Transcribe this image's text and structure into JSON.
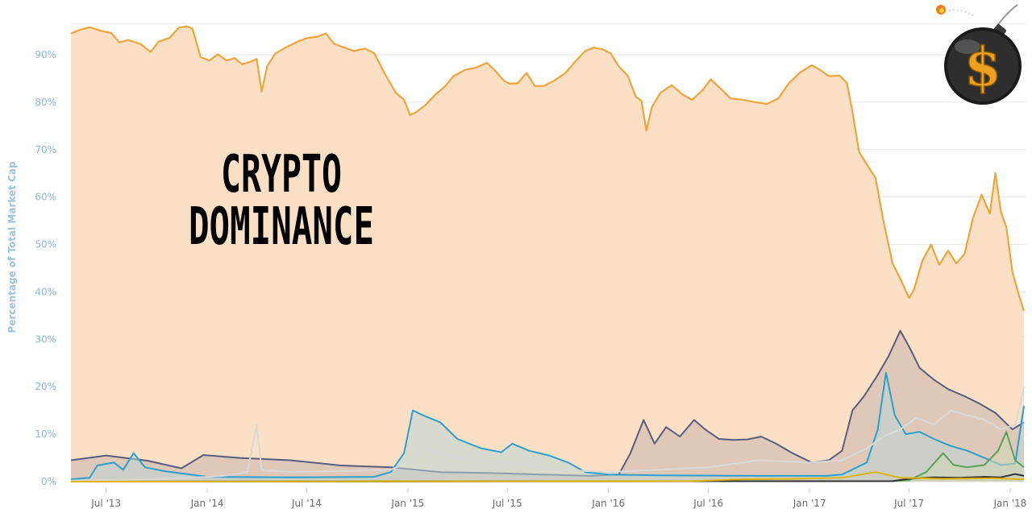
{
  "chart_data": {
    "type": "area",
    "title": "CRYPTO DOMINANCE",
    "ylabel": "Percentage of Total Market Cap",
    "xlabel": "",
    "x_range": [
      "2013-04-28",
      "2018-01-26"
    ],
    "ylim": [
      0,
      100
    ],
    "grid": true,
    "legend": "none",
    "y_ticks": [
      0,
      10,
      20,
      30,
      40,
      50,
      60,
      70,
      80,
      90
    ],
    "y_tick_labels": [
      "0%",
      "10%",
      "20%",
      "30%",
      "40%",
      "50%",
      "60%",
      "70%",
      "80%",
      "90%"
    ],
    "x_ticks": [
      "2013-07-01",
      "2014-01-01",
      "2014-07-01",
      "2015-01-01",
      "2015-07-01",
      "2016-01-01",
      "2016-07-01",
      "2017-01-01",
      "2017-07-01",
      "2018-01-01"
    ],
    "x_tick_labels": [
      "Jul '13",
      "Jan '14",
      "Jul '14",
      "Jan '15",
      "Jul '15",
      "Jan '16",
      "Jul '16",
      "Jan '17",
      "Jul '17",
      "Jan '18"
    ],
    "series": [
      {
        "color": "#f0a43c",
        "fill": "#fbe0c6",
        "points": [
          [
            "2013-04-28",
            94.5
          ],
          [
            "2013-05-15",
            95.3
          ],
          [
            "2013-06-01",
            95.8
          ],
          [
            "2013-06-20",
            95.1
          ],
          [
            "2013-07-10",
            94.6
          ],
          [
            "2013-07-25",
            92.6
          ],
          [
            "2013-08-10",
            93.1
          ],
          [
            "2013-09-01",
            92.3
          ],
          [
            "2013-09-20",
            90.6
          ],
          [
            "2013-10-05",
            92.8
          ],
          [
            "2013-10-25",
            93.6
          ],
          [
            "2013-11-10",
            95.7
          ],
          [
            "2013-11-25",
            96.0
          ],
          [
            "2013-12-05",
            95.5
          ],
          [
            "2013-12-20",
            89.5
          ],
          [
            "2014-01-05",
            88.8
          ],
          [
            "2014-01-20",
            90.1
          ],
          [
            "2014-02-05",
            88.8
          ],
          [
            "2014-02-20",
            89.3
          ],
          [
            "2014-03-05",
            88.0
          ],
          [
            "2014-03-20",
            88.5
          ],
          [
            "2014-04-01",
            89.1
          ],
          [
            "2014-04-10",
            82.2
          ],
          [
            "2014-04-20",
            87.6
          ],
          [
            "2014-05-05",
            90.3
          ],
          [
            "2014-05-25",
            91.6
          ],
          [
            "2014-06-15",
            92.8
          ],
          [
            "2014-07-01",
            93.5
          ],
          [
            "2014-07-20",
            93.8
          ],
          [
            "2014-08-05",
            94.5
          ],
          [
            "2014-08-20",
            92.3
          ],
          [
            "2014-09-05",
            91.6
          ],
          [
            "2014-09-25",
            90.8
          ],
          [
            "2014-10-15",
            91.3
          ],
          [
            "2014-11-01",
            90.3
          ],
          [
            "2014-11-20",
            86.0
          ],
          [
            "2014-12-10",
            82.0
          ],
          [
            "2014-12-25",
            80.5
          ],
          [
            "2015-01-05",
            77.3
          ],
          [
            "2015-01-15",
            77.8
          ],
          [
            "2015-02-01",
            79.3
          ],
          [
            "2015-02-20",
            81.6
          ],
          [
            "2015-03-10",
            83.4
          ],
          [
            "2015-03-25",
            85.5
          ],
          [
            "2015-04-15",
            86.8
          ],
          [
            "2015-05-05",
            87.3
          ],
          [
            "2015-05-25",
            88.3
          ],
          [
            "2015-06-10",
            86.5
          ],
          [
            "2015-06-25",
            84.5
          ],
          [
            "2015-07-05",
            83.9
          ],
          [
            "2015-07-20",
            84.0
          ],
          [
            "2015-08-05",
            86.2
          ],
          [
            "2015-08-20",
            83.4
          ],
          [
            "2015-09-05",
            83.4
          ],
          [
            "2015-09-25",
            84.6
          ],
          [
            "2015-10-15",
            86.2
          ],
          [
            "2015-11-01",
            88.5
          ],
          [
            "2015-11-20",
            90.8
          ],
          [
            "2015-12-05",
            91.5
          ],
          [
            "2015-12-20",
            91.2
          ],
          [
            "2016-01-05",
            90.3
          ],
          [
            "2016-01-20",
            87.5
          ],
          [
            "2016-02-05",
            85.6
          ],
          [
            "2016-02-20",
            81.1
          ],
          [
            "2016-03-01",
            80.3
          ],
          [
            "2016-03-10",
            74.0
          ],
          [
            "2016-03-20",
            79.0
          ],
          [
            "2016-04-05",
            82.0
          ],
          [
            "2016-04-25",
            83.6
          ],
          [
            "2016-05-15",
            81.6
          ],
          [
            "2016-06-01",
            80.5
          ],
          [
            "2016-06-20",
            82.5
          ],
          [
            "2016-07-05",
            84.8
          ],
          [
            "2016-07-20",
            83.2
          ],
          [
            "2016-08-10",
            80.8
          ],
          [
            "2016-09-01",
            80.5
          ],
          [
            "2016-09-25",
            80.0
          ],
          [
            "2016-10-15",
            79.6
          ],
          [
            "2016-11-05",
            80.8
          ],
          [
            "2016-11-25",
            84.1
          ],
          [
            "2016-12-15",
            86.3
          ],
          [
            "2017-01-05",
            87.8
          ],
          [
            "2017-01-20",
            86.8
          ],
          [
            "2017-02-05",
            85.5
          ],
          [
            "2017-02-25",
            85.6
          ],
          [
            "2017-03-10",
            84.0
          ],
          [
            "2017-03-20",
            78.0
          ],
          [
            "2017-04-01",
            69.5
          ],
          [
            "2017-04-15",
            66.9
          ],
          [
            "2017-05-01",
            64.0
          ],
          [
            "2017-05-15",
            55.1
          ],
          [
            "2017-06-01",
            46.0
          ],
          [
            "2017-06-15",
            42.8
          ],
          [
            "2017-07-01",
            38.7
          ],
          [
            "2017-07-10",
            40.5
          ],
          [
            "2017-07-25",
            46.5
          ],
          [
            "2017-08-10",
            50.0
          ],
          [
            "2017-08-25",
            45.7
          ],
          [
            "2017-09-10",
            48.7
          ],
          [
            "2017-09-25",
            46.0
          ],
          [
            "2017-10-10",
            48.0
          ],
          [
            "2017-10-25",
            55.5
          ],
          [
            "2017-11-10",
            60.5
          ],
          [
            "2017-11-25",
            56.5
          ],
          [
            "2017-12-05",
            65.1
          ],
          [
            "2017-12-15",
            56.9
          ],
          [
            "2017-12-25",
            53.6
          ],
          [
            "2018-01-05",
            44.3
          ],
          [
            "2018-01-15",
            40.0
          ],
          [
            "2018-01-26",
            36.0
          ]
        ]
      },
      {
        "color": "#5b5b80",
        "fill": "#c9b4ad",
        "points": [
          [
            "2013-04-28",
            4.5
          ],
          [
            "2013-07-01",
            5.5
          ],
          [
            "2013-09-15",
            4.4
          ],
          [
            "2013-11-15",
            2.8
          ],
          [
            "2013-12-25",
            5.6
          ],
          [
            "2014-03-01",
            5.0
          ],
          [
            "2014-06-01",
            4.5
          ],
          [
            "2014-09-01",
            3.4
          ],
          [
            "2014-12-01",
            3.0
          ],
          [
            "2015-03-01",
            2.0
          ],
          [
            "2015-06-01",
            1.8
          ],
          [
            "2015-09-01",
            1.5
          ],
          [
            "2015-12-01",
            1.2
          ],
          [
            "2016-01-20",
            1.5
          ],
          [
            "2016-02-10",
            6.0
          ],
          [
            "2016-03-05",
            13.0
          ],
          [
            "2016-03-25",
            8.0
          ],
          [
            "2016-04-15",
            11.5
          ],
          [
            "2016-05-10",
            9.5
          ],
          [
            "2016-06-05",
            13.0
          ],
          [
            "2016-06-25",
            11.0
          ],
          [
            "2016-07-20",
            9.0
          ],
          [
            "2016-08-15",
            8.8
          ],
          [
            "2016-09-10",
            8.9
          ],
          [
            "2016-10-05",
            9.5
          ],
          [
            "2016-11-01",
            8.0
          ],
          [
            "2016-12-01",
            6.0
          ],
          [
            "2017-01-05",
            4.0
          ],
          [
            "2017-02-05",
            4.5
          ],
          [
            "2017-03-01",
            6.5
          ],
          [
            "2017-03-20",
            15.0
          ],
          [
            "2017-04-10",
            18.0
          ],
          [
            "2017-05-05",
            22.5
          ],
          [
            "2017-05-25",
            26.5
          ],
          [
            "2017-06-15",
            31.8
          ],
          [
            "2017-07-01",
            28.5
          ],
          [
            "2017-07-20",
            24.0
          ],
          [
            "2017-08-15",
            21.5
          ],
          [
            "2017-09-10",
            19.5
          ],
          [
            "2017-10-10",
            18.0
          ],
          [
            "2017-11-05",
            16.5
          ],
          [
            "2017-12-05",
            14.5
          ],
          [
            "2018-01-05",
            11.0
          ],
          [
            "2018-01-26",
            12.5
          ]
        ]
      },
      {
        "color": "#2b9fcd",
        "fill": "#b9d6d4",
        "points": [
          [
            "2013-04-28",
            0.5
          ],
          [
            "2013-06-01",
            0.8
          ],
          [
            "2013-06-15",
            3.4
          ],
          [
            "2013-07-15",
            4.0
          ],
          [
            "2013-08-01",
            2.5
          ],
          [
            "2013-08-20",
            6.0
          ],
          [
            "2013-09-10",
            3.0
          ],
          [
            "2013-10-15",
            2.2
          ],
          [
            "2014-01-01",
            1.0
          ],
          [
            "2014-06-01",
            0.9
          ],
          [
            "2014-11-01",
            1.0
          ],
          [
            "2014-12-01",
            2.0
          ],
          [
            "2014-12-25",
            6.0
          ],
          [
            "2015-01-10",
            15.0
          ],
          [
            "2015-02-01",
            13.8
          ],
          [
            "2015-03-01",
            12.5
          ],
          [
            "2015-04-01",
            9.0
          ],
          [
            "2015-05-15",
            7.0
          ],
          [
            "2015-06-20",
            6.2
          ],
          [
            "2015-07-10",
            8.0
          ],
          [
            "2015-08-10",
            6.5
          ],
          [
            "2015-09-15",
            5.5
          ],
          [
            "2015-10-20",
            4.0
          ],
          [
            "2015-11-20",
            2.0
          ],
          [
            "2016-01-01",
            1.5
          ],
          [
            "2016-04-01",
            1.3
          ],
          [
            "2016-10-01",
            1.2
          ],
          [
            "2017-02-01",
            1.2
          ],
          [
            "2017-03-01",
            1.5
          ],
          [
            "2017-04-15",
            4.0
          ],
          [
            "2017-05-05",
            11.0
          ],
          [
            "2017-05-20",
            23.0
          ],
          [
            "2017-06-05",
            14.0
          ],
          [
            "2017-06-25",
            10.0
          ],
          [
            "2017-07-20",
            10.5
          ],
          [
            "2017-08-15",
            9.0
          ],
          [
            "2017-09-15",
            7.5
          ],
          [
            "2017-10-15",
            6.5
          ],
          [
            "2017-11-15",
            5.0
          ],
          [
            "2017-12-15",
            3.5
          ],
          [
            "2018-01-10",
            3.8
          ],
          [
            "2018-01-26",
            16.0
          ]
        ]
      },
      {
        "color": "#d9d9d9",
        "fill": "rgba(0,0,0,0)",
        "points": [
          [
            "2013-04-28",
            0.2
          ],
          [
            "2013-08-01",
            0.3
          ],
          [
            "2013-12-01",
            0.8
          ],
          [
            "2014-02-01",
            1.2
          ],
          [
            "2014-03-15",
            2.0
          ],
          [
            "2014-04-01",
            12.0
          ],
          [
            "2014-04-10",
            2.5
          ],
          [
            "2014-06-01",
            2.0
          ],
          [
            "2014-09-01",
            2.2
          ],
          [
            "2014-12-01",
            2.5
          ],
          [
            "2015-01-10",
            4.5
          ],
          [
            "2015-02-01",
            7.0
          ],
          [
            "2015-04-01",
            5.0
          ],
          [
            "2015-07-01",
            4.0
          ],
          [
            "2015-10-01",
            2.5
          ],
          [
            "2016-01-01",
            2.0
          ],
          [
            "2016-04-01",
            2.5
          ],
          [
            "2016-07-01",
            3.0
          ],
          [
            "2016-10-01",
            4.5
          ],
          [
            "2017-01-01",
            4.0
          ],
          [
            "2017-03-01",
            4.5
          ],
          [
            "2017-04-15",
            7.0
          ],
          [
            "2017-05-15",
            9.5
          ],
          [
            "2017-06-15",
            11.0
          ],
          [
            "2017-07-15",
            13.5
          ],
          [
            "2017-08-15",
            12.0
          ],
          [
            "2017-09-15",
            15.0
          ],
          [
            "2017-10-15",
            14.0
          ],
          [
            "2017-11-15",
            13.0
          ],
          [
            "2017-12-15",
            11.0
          ],
          [
            "2018-01-10",
            12.0
          ],
          [
            "2018-01-26",
            20.0
          ]
        ]
      },
      {
        "color": "#5aa05a",
        "fill": "#cfd9b7",
        "points": [
          [
            "2013-04-28",
            0.0
          ],
          [
            "2017-06-01",
            0.1
          ],
          [
            "2017-07-01",
            0.3
          ],
          [
            "2017-08-01",
            2.0
          ],
          [
            "2017-09-01",
            6.0
          ],
          [
            "2017-09-20",
            3.5
          ],
          [
            "2017-10-15",
            3.0
          ],
          [
            "2017-11-15",
            3.5
          ],
          [
            "2017-12-10",
            6.5
          ],
          [
            "2017-12-25",
            10.5
          ],
          [
            "2018-01-10",
            4.5
          ],
          [
            "2018-01-26",
            3.0
          ]
        ]
      },
      {
        "color": "#333333",
        "fill": "rgba(0,0,0,0)",
        "points": [
          [
            "2013-04-28",
            0.0
          ],
          [
            "2017-06-01",
            0.1
          ],
          [
            "2017-07-01",
            0.6
          ],
          [
            "2017-08-15",
            0.9
          ],
          [
            "2017-10-01",
            0.8
          ],
          [
            "2017-11-15",
            1.0
          ],
          [
            "2017-12-15",
            0.9
          ],
          [
            "2018-01-10",
            1.6
          ],
          [
            "2018-01-26",
            1.2
          ]
        ]
      },
      {
        "color": "#e0b400",
        "fill": "rgba(0,0,0,0)",
        "points": [
          [
            "2013-04-28",
            0.0
          ],
          [
            "2016-06-01",
            0.1
          ],
          [
            "2016-09-01",
            0.5
          ],
          [
            "2016-12-01",
            0.6
          ],
          [
            "2017-03-01",
            0.8
          ],
          [
            "2017-05-01",
            2.0
          ],
          [
            "2017-06-15",
            0.8
          ],
          [
            "2017-09-01",
            0.6
          ],
          [
            "2017-12-01",
            0.7
          ],
          [
            "2018-01-26",
            0.5
          ]
        ]
      }
    ]
  }
}
